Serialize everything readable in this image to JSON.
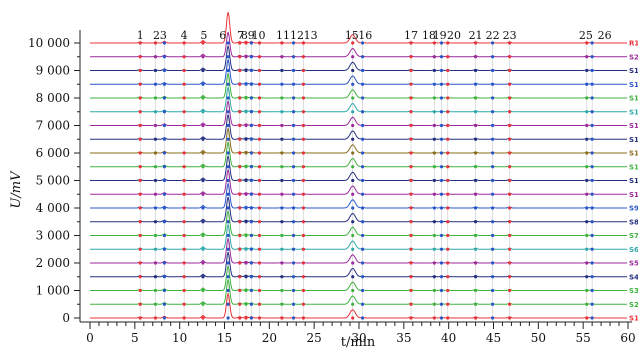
{
  "chart_data": {
    "type": "line",
    "title": "",
    "xlabel": "t/min",
    "ylabel": "U/mV",
    "xlim": [
      -2,
      60
    ],
    "ylim": [
      -300,
      10500
    ],
    "x_ticks": [
      0,
      5,
      10,
      15,
      20,
      25,
      30,
      35,
      40,
      45,
      50,
      55,
      60
    ],
    "y_ticks": [
      0,
      1000,
      2000,
      3000,
      4000,
      5000,
      6000,
      7000,
      8000,
      9000,
      10000
    ],
    "y_tick_labels": [
      "0",
      "1 000",
      "2 000",
      "3 000",
      "4 000",
      "5 000",
      "6 000",
      "7 000",
      "8 000",
      "9 000",
      "10 000"
    ],
    "x_tick_labels": [
      "0",
      "5",
      "10",
      "15",
      "20",
      "25",
      "30",
      "35",
      "40",
      "45",
      "50",
      "55",
      "60"
    ],
    "peak_labels": [
      {
        "text": "1",
        "x": 5.6
      },
      {
        "text": "23",
        "x": 7.8
      },
      {
        "text": "4",
        "x": 10.5
      },
      {
        "text": "5",
        "x": 12.7
      },
      {
        "text": "6",
        "x": 14.8
      },
      {
        "text": "89",
        "x": 17.6
      },
      {
        "text": "7",
        "x": 16.8
      },
      {
        "text": "10",
        "x": 18.8
      },
      {
        "text": "1112",
        "x": 22.3
      },
      {
        "text": "13",
        "x": 24.6
      },
      {
        "text": "15",
        "x": 29.2
      },
      {
        "text": "16",
        "x": 30.7
      },
      {
        "text": "17",
        "x": 35.8
      },
      {
        "text": "18",
        "x": 37.8
      },
      {
        "text": "19",
        "x": 39.0
      },
      {
        "text": "20",
        "x": 40.6
      },
      {
        "text": "21",
        "x": 43.0
      },
      {
        "text": "22",
        "x": 44.9
      },
      {
        "text": "23",
        "x": 46.8
      },
      {
        "text": "25",
        "x": 55.3
      },
      {
        "text": "26",
        "x": 57.4
      }
    ],
    "peak_positions": [
      5.6,
      7.3,
      8.3,
      10.5,
      12.6,
      15.4,
      16.7,
      17.4,
      18.0,
      18.9,
      21.4,
      22.7,
      23.8,
      29.3,
      30.4,
      35.8,
      38.4,
      39.2,
      39.9,
      43.0,
      44.9,
      46.8,
      55.4,
      56.0
    ],
    "main_peak_x": 15.4,
    "series": [
      {
        "name": "S1",
        "offset": 0,
        "color": "#e8333a"
      },
      {
        "name": "S2",
        "offset": 500,
        "color": "#3fb23f"
      },
      {
        "name": "S3",
        "offset": 1000,
        "color": "#3fb23f"
      },
      {
        "name": "S4",
        "offset": 1500,
        "color": "#24307f"
      },
      {
        "name": "S5",
        "offset": 2000,
        "color": "#9b2a9b"
      },
      {
        "name": "S6",
        "offset": 2500,
        "color": "#2fa9a9"
      },
      {
        "name": "S7",
        "offset": 3000,
        "color": "#3fb23f"
      },
      {
        "name": "S8",
        "offset": 3500,
        "color": "#24307f"
      },
      {
        "name": "S9",
        "offset": 4000,
        "color": "#2a57c8"
      },
      {
        "name": "S1",
        "offset": 4500,
        "color": "#9b2a9b"
      },
      {
        "name": "S1",
        "offset": 5000,
        "color": "#24307f"
      },
      {
        "name": "S1",
        "offset": 5500,
        "color": "#3fb23f"
      },
      {
        "name": "S1",
        "offset": 6000,
        "color": "#8a6d1e"
      },
      {
        "name": "S1",
        "offset": 6500,
        "color": "#24307f"
      },
      {
        "name": "S1",
        "offset": 7000,
        "color": "#9b2a9b"
      },
      {
        "name": "S1",
        "offset": 7500,
        "color": "#2fa9a9"
      },
      {
        "name": "S1",
        "offset": 8000,
        "color": "#3fb23f"
      },
      {
        "name": "S1",
        "offset": 8500,
        "color": "#2a57c8"
      },
      {
        "name": "S1",
        "offset": 9000,
        "color": "#24307f"
      },
      {
        "name": "S2",
        "offset": 9500,
        "color": "#9b2a9b"
      },
      {
        "name": "R1",
        "offset": 10000,
        "color": "#e8333a"
      }
    ]
  }
}
